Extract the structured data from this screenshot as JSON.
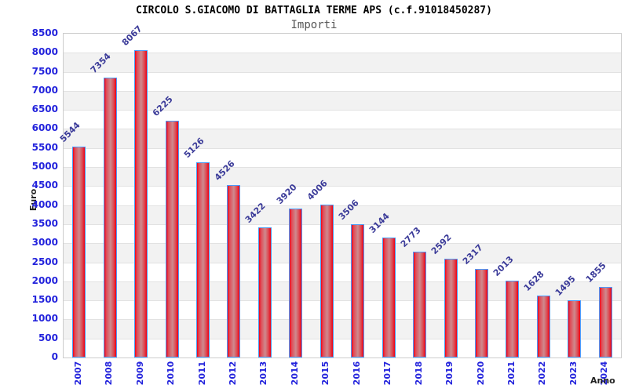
{
  "chart_data": {
    "type": "bar",
    "title": "CIRCOLO S.GIACOMO DI BATTAGLIA TERME APS (c.f.91018450287)",
    "subtitle": "Importi",
    "xlabel": "Anno",
    "ylabel": "Euro",
    "categories": [
      "2007",
      "2008",
      "2009",
      "2010",
      "2011",
      "2012",
      "2013",
      "2014",
      "2015",
      "2016",
      "2017",
      "2018",
      "2019",
      "2020",
      "2021",
      "2022",
      "2023",
      "2024"
    ],
    "values": [
      5544,
      7354,
      8067,
      6225,
      5126,
      4526,
      3422,
      3920,
      4006,
      3506,
      3144,
      2773,
      2592,
      2317,
      2013,
      1628,
      1495,
      1855
    ],
    "ylim": [
      0,
      8500
    ],
    "ytick_step": 500,
    "grid": true,
    "legend_position": "none",
    "colors": {
      "bar_fill_edge": "#f20016",
      "bar_fill_mid": "#cf8a8e",
      "bar_border": "#4a9cff",
      "axis_tick_text": "#2323dc",
      "value_label_text": "#3b3b99",
      "band_gray": "#f2f2f2",
      "gridline": "#e2e2e2",
      "subtitle_text": "#555555",
      "title_text": "#000000"
    }
  }
}
